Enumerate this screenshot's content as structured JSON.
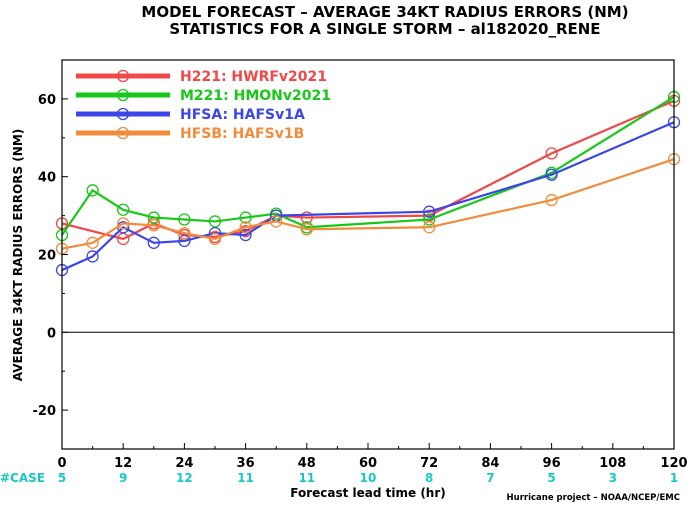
{
  "title_line1": "MODEL FORECAST – AVERAGE 34KT RADIUS ERRORS (NM)",
  "title_line2": "STATISTICS FOR A SINGLE STORM – al182020_RENE",
  "credit": "Hurricane project – NOAA/NCEP/EMC",
  "chart_data": {
    "type": "line",
    "xlabel": "Forecast lead time (hr)",
    "ylabel": "AVERAGE 34KT RADIUS ERRORS (NM)",
    "xlim": [
      0,
      120
    ],
    "ylim": [
      -30,
      70
    ],
    "x_ticks": [
      0,
      12,
      24,
      36,
      48,
      60,
      72,
      84,
      96,
      108,
      120
    ],
    "y_ticks": [
      -20,
      0,
      20,
      40,
      60
    ],
    "grid": false,
    "zero_line": true,
    "legend_position": "top-left",
    "case_label": "#CASE",
    "case_counts": [
      5,
      9,
      12,
      11,
      11,
      10,
      8,
      7,
      5,
      3,
      1
    ],
    "series": [
      {
        "name": "H221: HWRFv2021",
        "color": "#f04848",
        "x": [
          0,
          12,
          18,
          24,
          30,
          36,
          42,
          48,
          72,
          96,
          120
        ],
        "values": [
          28,
          24,
          28,
          25,
          24.5,
          26,
          30,
          29.5,
          30,
          46,
          59.5
        ]
      },
      {
        "name": "M221: HMONv2021",
        "color": "#18c818",
        "x": [
          0,
          6,
          12,
          18,
          24,
          30,
          36,
          42,
          48,
          72,
          96,
          120
        ],
        "values": [
          25,
          36.5,
          31.5,
          29.5,
          29,
          28.5,
          29.5,
          30.5,
          27,
          29,
          41,
          60.5
        ]
      },
      {
        "name": "HFSA: HAFSv1A",
        "color": "#3c46e6",
        "x": [
          0,
          6,
          12,
          18,
          24,
          30,
          36,
          42,
          72,
          96,
          120
        ],
        "values": [
          16,
          19.5,
          27,
          23,
          23.5,
          25.5,
          25,
          30,
          31,
          40.5,
          54
        ]
      },
      {
        "name": "HFSB: HAFSv1B",
        "color": "#f08c3c",
        "x": [
          0,
          6,
          12,
          18,
          24,
          30,
          36,
          42,
          48,
          72,
          96,
          120
        ],
        "values": [
          21.5,
          23,
          28,
          27.5,
          25.5,
          24,
          27,
          28.5,
          26.5,
          27,
          34,
          44.5
        ]
      }
    ]
  }
}
